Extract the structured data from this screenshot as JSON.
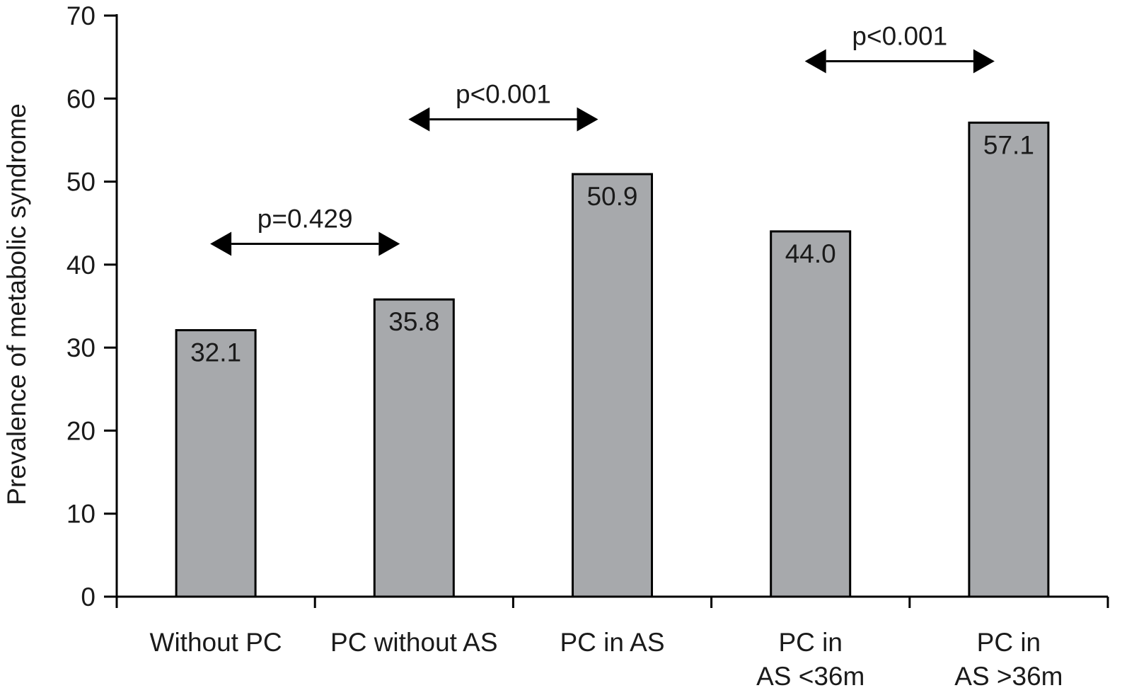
{
  "chart_data": {
    "type": "bar",
    "title": "",
    "xlabel": "",
    "ylabel": "Prevalence of metabolic syndrome",
    "ylim": [
      0,
      70
    ],
    "yticks": [
      0,
      10,
      20,
      30,
      40,
      50,
      60,
      70
    ],
    "grid": false,
    "legend": "none",
    "categories": [
      [
        "Without PC"
      ],
      [
        "PC without AS"
      ],
      [
        "PC in AS"
      ],
      [
        "PC in",
        "AS <36m"
      ],
      [
        "PC in",
        "AS >36m"
      ]
    ],
    "values": [
      32.1,
      35.8,
      50.9,
      44.0,
      57.1
    ],
    "value_labels": [
      "32.1",
      "35.8",
      "50.9",
      "44.0",
      "57.1"
    ],
    "bar_color": "#a7a9ac",
    "annotations": [
      {
        "text": "p=0.429",
        "from_category": 0,
        "to_category": 1,
        "level": 42.5
      },
      {
        "text": "p<0.001",
        "from_category": 1,
        "to_category": 2,
        "level": 57.5
      },
      {
        "text": "p<0.001",
        "from_category": 3,
        "to_category": 4,
        "level": 64.5
      }
    ]
  }
}
